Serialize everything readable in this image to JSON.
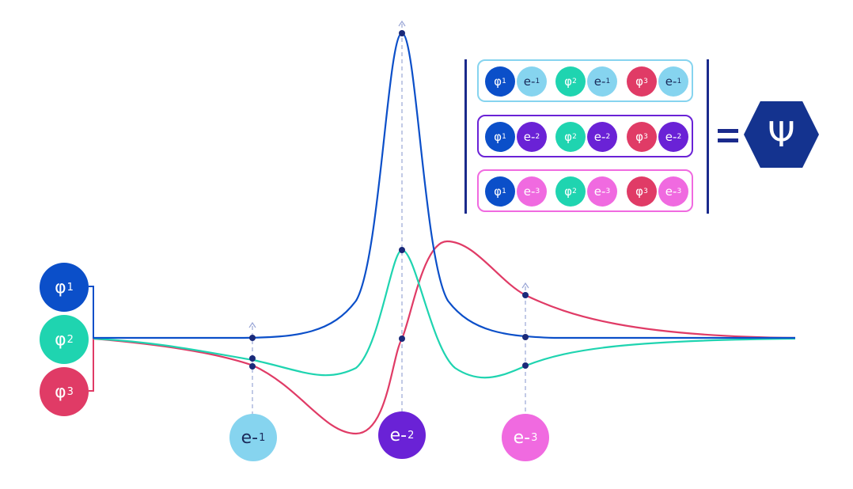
{
  "colors": {
    "phi1": "#0b4fc9",
    "phi2": "#1fd4b0",
    "phi3": "#e03b66",
    "e1": "#86d4ef",
    "e2": "#6a22d6",
    "e3": "#f06ae0",
    "psi": "#14338f"
  },
  "orbitals": [
    {
      "symbol": "φ",
      "index": "1"
    },
    {
      "symbol": "φ",
      "index": "2"
    },
    {
      "symbol": "φ",
      "index": "3"
    }
  ],
  "electrons": [
    {
      "symbol": "e-",
      "index": "1"
    },
    {
      "symbol": "e-",
      "index": "2"
    },
    {
      "symbol": "e-",
      "index": "3"
    }
  ],
  "result": {
    "equals": "=",
    "symbol": "Ψ"
  }
}
